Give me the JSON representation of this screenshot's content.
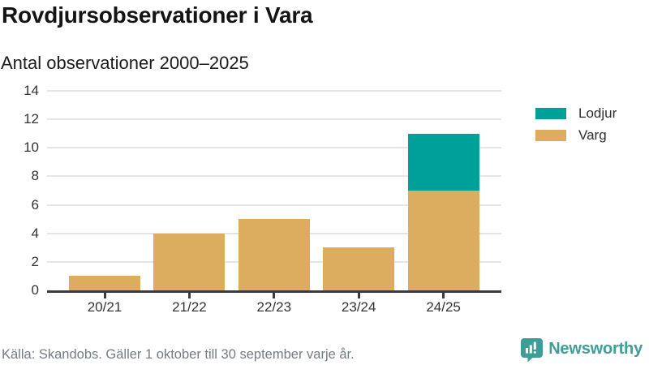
{
  "header": {
    "title": "Rovdjursobservationer i Vara",
    "subtitle": "Antal observationer 2000–2025"
  },
  "chart_data": {
    "type": "bar",
    "stacked": true,
    "title": "Rovdjursobservationer i Vara",
    "subtitle": "Antal observationer 2000–2025",
    "categories": [
      "20/21",
      "21/22",
      "22/23",
      "23/24",
      "24/25"
    ],
    "series": [
      {
        "name": "Lodjur",
        "color": "#00a09a",
        "values": [
          0,
          0,
          0,
          0,
          4
        ]
      },
      {
        "name": "Varg",
        "color": "#dcad5f",
        "values": [
          1,
          4,
          5,
          3,
          7
        ]
      }
    ],
    "totals": [
      1,
      4,
      5,
      3,
      11
    ],
    "xlabel": "",
    "ylabel": "",
    "ylim": [
      0,
      14
    ],
    "yticks": [
      0,
      2,
      4,
      6,
      8,
      10,
      12,
      14
    ],
    "grid": true,
    "legend_position": "right",
    "axis_color": "#3b3b3b",
    "gridline_color": "#e5e5e5"
  },
  "footer": {
    "source": "Källa: Skandobs. Gäller 1 oktober till 30 september varje år.",
    "brand": "Newsworthy"
  },
  "colors": {
    "lodjur": "#00a09a",
    "varg": "#dcad5f",
    "brand_teal": "#3d9e98",
    "text_dark": "#1c1c1c",
    "text_gray": "#757b84"
  }
}
